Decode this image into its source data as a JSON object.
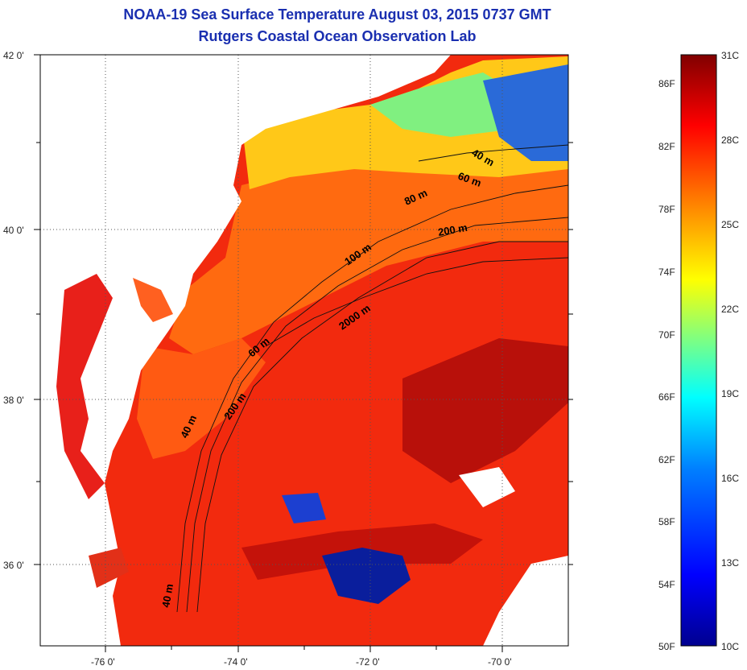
{
  "header": {
    "title": "NOAA-19 Sea Surface Temperature August 03, 2015 0737 GMT",
    "subtitle": "Rutgers Coastal Ocean Observation Lab"
  },
  "map": {
    "lat_ticks": [
      "42 0'",
      "40 0'",
      "38 0'",
      "36 0'"
    ],
    "lon_ticks": [
      "-76 0'",
      "-74 0'",
      "-72 0'",
      "-70 0'"
    ],
    "lat_range": [
      35,
      42
    ],
    "lon_range": [
      -77,
      -69
    ],
    "contour_labels": [
      "40 m",
      "60 m",
      "80 m",
      "200 m",
      "100 m",
      "2000 m",
      "60 m",
      "200 m",
      "40 m",
      "40 m"
    ]
  },
  "colorbar": {
    "fahrenheit_labels": [
      "86F",
      "82F",
      "78F",
      "74F",
      "70F",
      "66F",
      "62F",
      "58F",
      "54F",
      "50F"
    ],
    "celsius_labels": [
      "31C",
      "28C",
      "25C",
      "22C",
      "19C",
      "16C",
      "13C",
      "10C"
    ],
    "range_c": [
      10,
      31
    ],
    "colors": [
      "#00008f",
      "#0000ff",
      "#0080ff",
      "#00ffff",
      "#80ff80",
      "#ffff00",
      "#ff8000",
      "#ff0000",
      "#800000"
    ]
  }
}
